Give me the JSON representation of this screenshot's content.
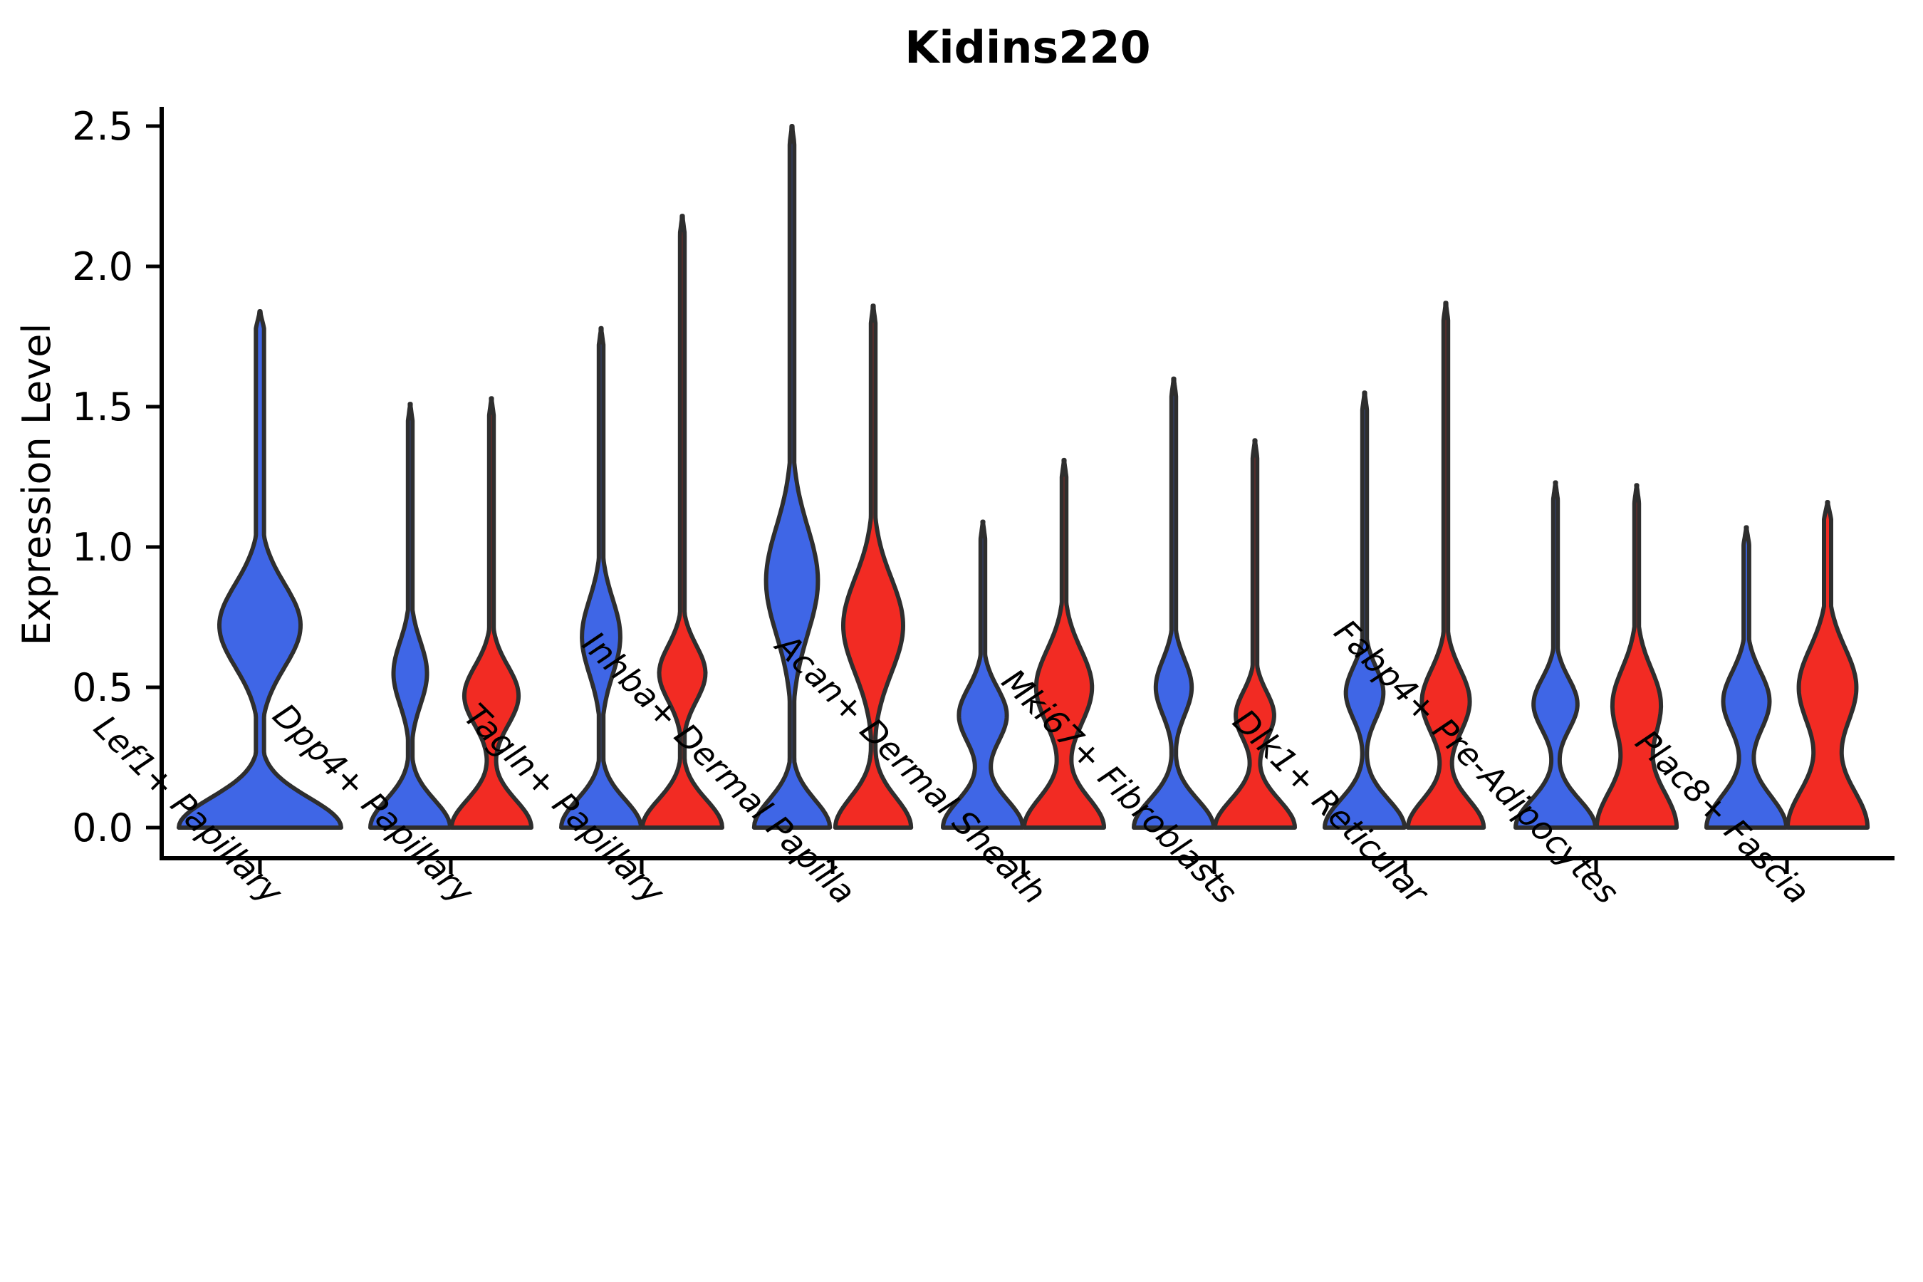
{
  "chart_data": {
    "type": "violin",
    "title": "Kidins220",
    "ylabel": "Expression Level",
    "xlabel": "",
    "ylim": [
      0,
      2.6
    ],
    "yticks": [
      "0.0",
      "0.5",
      "1.0",
      "1.5",
      "2.0",
      "2.5"
    ],
    "grid": false,
    "legend_position": "none",
    "background": "#ffffff",
    "colors": {
      "blue": "#3F66E6",
      "red": "#F22B23",
      "outline": "#2E2E2E",
      "axis": "#000000"
    },
    "categories": [
      "Lef1+ Papillary",
      "Dpp4+ Papillary",
      "Tagln+ Papillary",
      "Inhba+ Dermal Papilla",
      "Acan+ Dermal Sheath",
      "Mki67+ Fibroblasts",
      "Dlk1+ Reticular",
      "Fabp4+ Pre-Adipocytes",
      "Plac8+ Fascia"
    ],
    "groups": [
      {
        "label": "Lef1+ Papillary",
        "violins": [
          {
            "series": "blue",
            "max": 1.84,
            "bulge_center": 0.72,
            "bulge_sd": 0.21,
            "bulge_amp": 0.5,
            "base_amp": 1.0,
            "base_sd": 0.15,
            "span": "full"
          }
        ]
      },
      {
        "label": "Dpp4+ Papillary",
        "violins": [
          {
            "series": "blue",
            "max": 1.51,
            "bulge_center": 0.55,
            "bulge_sd": 0.16,
            "bulge_amp": 0.42,
            "base_amp": 1.0,
            "base_sd": 0.14,
            "span": "half"
          },
          {
            "series": "red",
            "max": 1.53,
            "bulge_center": 0.47,
            "bulge_sd": 0.15,
            "bulge_amp": 0.68,
            "base_amp": 1.0,
            "base_sd": 0.14,
            "span": "half"
          }
        ]
      },
      {
        "label": "Tagln+ Papillary",
        "violins": [
          {
            "series": "blue",
            "max": 1.78,
            "bulge_center": 0.68,
            "bulge_sd": 0.19,
            "bulge_amp": 0.48,
            "base_amp": 1.0,
            "base_sd": 0.14,
            "span": "half"
          },
          {
            "series": "red",
            "max": 2.18,
            "bulge_center": 0.55,
            "bulge_sd": 0.14,
            "bulge_amp": 0.58,
            "base_amp": 1.0,
            "base_sd": 0.14,
            "span": "half"
          }
        ]
      },
      {
        "label": "Inhba+ Dermal Papilla",
        "violins": [
          {
            "series": "blue",
            "max": 2.5,
            "bulge_center": 0.88,
            "bulge_sd": 0.27,
            "bulge_amp": 0.65,
            "base_amp": 0.95,
            "base_sd": 0.14,
            "span": "half"
          },
          {
            "series": "red",
            "max": 1.86,
            "bulge_center": 0.72,
            "bulge_sd": 0.24,
            "bulge_amp": 0.75,
            "base_amp": 0.95,
            "base_sd": 0.15,
            "span": "half"
          }
        ]
      },
      {
        "label": "Acan+ Dermal Sheath",
        "violins": [
          {
            "series": "blue",
            "max": 1.09,
            "bulge_center": 0.4,
            "bulge_sd": 0.14,
            "bulge_amp": 0.6,
            "base_amp": 1.0,
            "base_sd": 0.14,
            "span": "half"
          },
          {
            "series": "red",
            "max": 1.31,
            "bulge_center": 0.5,
            "bulge_sd": 0.19,
            "bulge_amp": 0.7,
            "base_amp": 1.0,
            "base_sd": 0.15,
            "span": "half"
          }
        ]
      },
      {
        "label": "Mki67+ Fibroblasts",
        "violins": [
          {
            "series": "blue",
            "max": 1.6,
            "bulge_center": 0.5,
            "bulge_sd": 0.14,
            "bulge_amp": 0.45,
            "base_amp": 1.0,
            "base_sd": 0.14,
            "span": "half"
          },
          {
            "series": "red",
            "max": 1.38,
            "bulge_center": 0.4,
            "bulge_sd": 0.12,
            "bulge_amp": 0.48,
            "base_amp": 1.0,
            "base_sd": 0.14,
            "span": "half"
          }
        ]
      },
      {
        "label": "Dlk1+ Reticular",
        "violins": [
          {
            "series": "blue",
            "max": 1.55,
            "bulge_center": 0.48,
            "bulge_sd": 0.13,
            "bulge_amp": 0.47,
            "base_amp": 1.0,
            "base_sd": 0.14,
            "span": "half"
          },
          {
            "series": "red",
            "max": 1.87,
            "bulge_center": 0.45,
            "bulge_sd": 0.16,
            "bulge_amp": 0.6,
            "base_amp": 0.95,
            "base_sd": 0.14,
            "span": "half"
          }
        ]
      },
      {
        "label": "Fabp4+ Pre-Adipocytes",
        "violins": [
          {
            "series": "blue",
            "max": 1.23,
            "bulge_center": 0.44,
            "bulge_sd": 0.13,
            "bulge_amp": 0.55,
            "base_amp": 1.0,
            "base_sd": 0.14,
            "span": "half"
          },
          {
            "series": "red",
            "max": 1.22,
            "bulge_center": 0.44,
            "bulge_sd": 0.18,
            "bulge_amp": 0.6,
            "base_amp": 1.0,
            "base_sd": 0.2,
            "span": "half"
          }
        ]
      },
      {
        "label": "Plac8+ Fascia",
        "violins": [
          {
            "series": "blue",
            "max": 1.07,
            "bulge_center": 0.45,
            "bulge_sd": 0.15,
            "bulge_amp": 0.58,
            "base_amp": 1.0,
            "base_sd": 0.16,
            "neck": 0.07,
            "span": "half"
          },
          {
            "series": "red",
            "max": 1.16,
            "bulge_center": 0.5,
            "bulge_sd": 0.2,
            "bulge_amp": 0.72,
            "base_amp": 1.0,
            "base_sd": 0.2,
            "neck": 0.09,
            "span": "half"
          }
        ]
      }
    ]
  }
}
